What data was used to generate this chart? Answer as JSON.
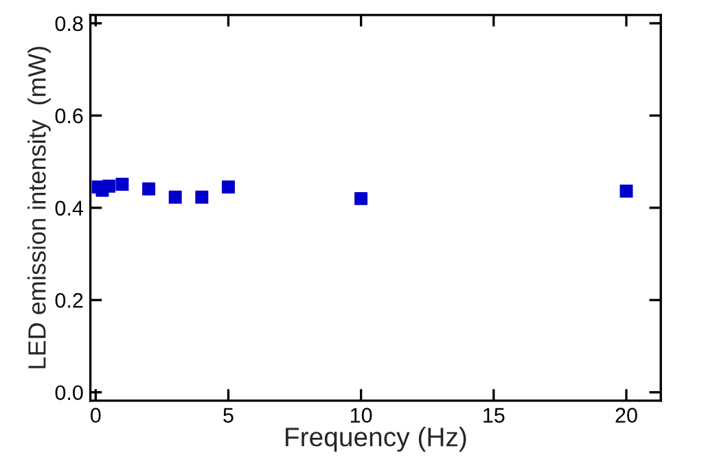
{
  "chart_data": {
    "type": "scatter",
    "xlabel": "Frequency (Hz)",
    "ylabel": "LED emission intensity  (mW)",
    "x": [
      0.1,
      0.25,
      0.5,
      1,
      2,
      3,
      4,
      5,
      10,
      20
    ],
    "values": [
      0.445,
      0.438,
      0.447,
      0.451,
      0.441,
      0.423,
      0.423,
      0.445,
      0.42,
      0.436
    ],
    "color": "#0000cc",
    "marker": "square",
    "xlim": [
      -0.2,
      21.3
    ],
    "ylim": [
      -0.018,
      0.818
    ],
    "xticks": [
      0,
      5,
      10,
      15,
      20
    ],
    "yticks": [
      {
        "value": 0,
        "label": "0.0"
      },
      0.2,
      0.4,
      0.6,
      0.8
    ],
    "grid": false,
    "legend": false
  }
}
